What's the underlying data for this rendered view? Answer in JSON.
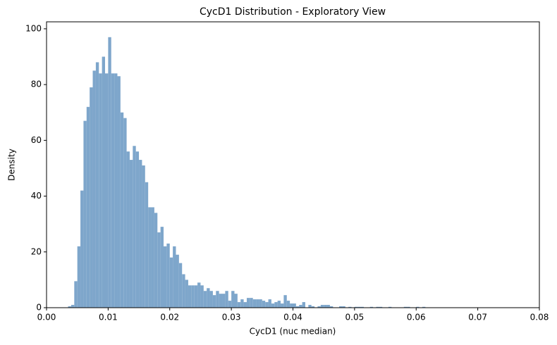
{
  "chart_data": {
    "type": "histogram",
    "title": "CycD1 Distribution - Exploratory View",
    "x_label": "CycD1 (nuc median)",
    "y_label": "Density",
    "color": "#7ea6cb",
    "bins": [
      0.0035,
      0.004,
      0.0045,
      0.005,
      0.0055,
      0.006,
      0.0065,
      0.007,
      0.0075,
      0.008,
      0.0085,
      0.009,
      0.0095,
      0.01,
      0.0105,
      0.011,
      0.0115,
      0.012,
      0.0125,
      0.013,
      0.0135,
      0.014,
      0.0145,
      0.015,
      0.0155,
      0.016,
      0.0165,
      0.017,
      0.0175,
      0.018,
      0.0185,
      0.019,
      0.0195,
      0.02,
      0.0205,
      0.021,
      0.0215,
      0.022,
      0.0225,
      0.023,
      0.0235,
      0.024,
      0.0245,
      0.025,
      0.0255,
      0.026,
      0.0265,
      0.027,
      0.0275,
      0.028,
      0.0285,
      0.029,
      0.0295,
      0.03,
      0.0305,
      0.031,
      0.0315,
      0.032,
      0.0325,
      0.033,
      0.0335,
      0.034,
      0.0345,
      0.035,
      0.0355,
      0.036,
      0.0365,
      0.037,
      0.0375,
      0.038,
      0.0385,
      0.039,
      0.0395,
      0.04,
      0.0405,
      0.041,
      0.0415,
      0.042,
      0.0425,
      0.043,
      0.0435,
      0.044,
      0.0445,
      0.045,
      0.0455,
      0.046,
      0.0465,
      0.047,
      0.0475,
      0.048,
      0.0485,
      0.049,
      0.0495,
      0.05,
      0.0505,
      0.051,
      0.0515,
      0.052,
      0.0525,
      0.053,
      0.0535,
      0.054,
      0.0545,
      0.055,
      0.0555,
      0.056,
      0.0565,
      0.057,
      0.0575,
      0.058,
      0.0585,
      0.059,
      0.0595,
      0.06,
      0.0605,
      0.061,
      0.0615,
      0.062
    ],
    "values": [
      0.5,
      1,
      9.5,
      22,
      42,
      67,
      72,
      79,
      85,
      88,
      84,
      90,
      84,
      97,
      84,
      84,
      83,
      70,
      68,
      56,
      53,
      58,
      56,
      53,
      51,
      45,
      36,
      36,
      34,
      27,
      29,
      22,
      23,
      18,
      22,
      19,
      16,
      12,
      10,
      8,
      8,
      8,
      9,
      8,
      6,
      7,
      6,
      4.5,
      6,
      5,
      5,
      6,
      2.5,
      6,
      5,
      2,
      3,
      2,
      3.5,
      3.5,
      3,
      3,
      3,
      2.5,
      2,
      3,
      1.5,
      2,
      2.5,
      1.5,
      4.5,
      2.5,
      1.5,
      1.5,
      0.5,
      1,
      2,
      0,
      1,
      0.5,
      0,
      0.5,
      1,
      1,
      1,
      0.5,
      0,
      0,
      0.5,
      0.5,
      0,
      0.3,
      0,
      0.3,
      0.3,
      0.3,
      0,
      0,
      0.3,
      0,
      0.3,
      0.3,
      0,
      0,
      0.3,
      0,
      0,
      0,
      0,
      0.3,
      0.3,
      0,
      0,
      0.3,
      0,
      0.3,
      0
    ],
    "xlim": [
      0,
      0.08
    ],
    "ylim": [
      0,
      102.5
    ],
    "xticks": [
      {
        "value": 0,
        "label": "0.00"
      },
      {
        "value": 0.01,
        "label": "0.01"
      },
      {
        "value": 0.02,
        "label": "0.02"
      },
      {
        "value": 0.03,
        "label": "0.03"
      },
      {
        "value": 0.04,
        "label": "0.04"
      },
      {
        "value": 0.05,
        "label": "0.05"
      },
      {
        "value": 0.06,
        "label": "0.06"
      },
      {
        "value": 0.07,
        "label": "0.07"
      },
      {
        "value": 0.08,
        "label": "0.08"
      }
    ],
    "yticks": [
      0,
      20,
      40,
      60,
      80,
      100
    ]
  }
}
